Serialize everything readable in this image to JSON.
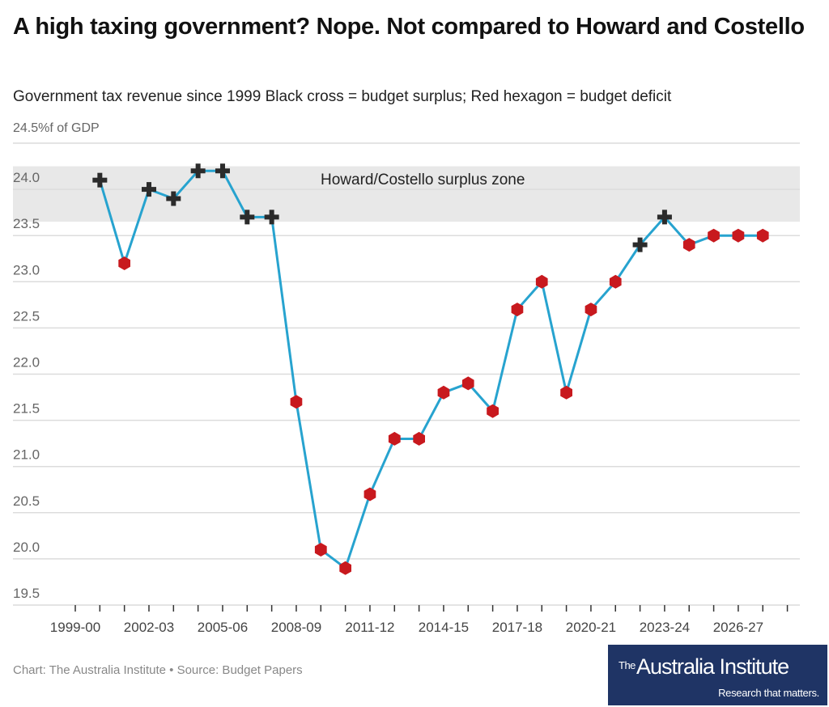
{
  "header": {
    "title": "A high taxing government? Nope. Not compared to Howard and Costello",
    "subtitle": "Government tax revenue since 1999 Black cross = budget surplus; Red hexagon = budget deficit",
    "unit_label": "24.5%f of GDP"
  },
  "footer": {
    "source": "Chart: The Australia Institute • Source: Budget Papers",
    "logo": {
      "the": "The",
      "name": "Australia Institute",
      "tagline": "Research that matters."
    }
  },
  "colors": {
    "line": "#27a3cf",
    "deficit": "#c8191e",
    "surplus": "#2b2b2b",
    "band": "#e8e8e8",
    "grid": "#dcdcdc",
    "logo_bg": "#1f3465"
  },
  "chart_data": {
    "type": "line",
    "title": "A high taxing government? Nope. Not compared to Howard and Costello",
    "subtitle": "Government tax revenue since 1999 Black cross = budget surplus; Red hexagon = budget deficit",
    "xlabel": "",
    "ylabel": "% of GDP",
    "ylim": [
      19.5,
      24.5
    ],
    "yticks": [
      "19.5",
      "20.0",
      "20.5",
      "21.0",
      "21.5",
      "22.0",
      "22.5",
      "23.0",
      "23.5",
      "24.0"
    ],
    "xtick_labels": [
      "1999-00",
      "2002-03",
      "2005-06",
      "2008-09",
      "2011-12",
      "2014-15",
      "2017-18",
      "2020-21",
      "2023-24",
      "2026-27"
    ],
    "axis_categories": [
      "1999-00",
      "2000-01",
      "2001-02",
      "2002-03",
      "2003-04",
      "2004-05",
      "2005-06",
      "2006-07",
      "2007-08",
      "2008-09",
      "2009-10",
      "2010-11",
      "2011-12",
      "2012-13",
      "2013-14",
      "2014-15",
      "2015-16",
      "2016-17",
      "2017-18",
      "2018-19",
      "2019-20",
      "2020-21",
      "2021-22",
      "2022-23",
      "2023-24",
      "2024-25",
      "2025-26",
      "2026-27",
      "2027-28",
      "2028-29"
    ],
    "grid": true,
    "legend": "none (encoded in subtitle)",
    "band": {
      "label": "Howard/Costello surplus zone",
      "from": 23.65,
      "to": 24.25
    },
    "series": [
      {
        "name": "Tax revenue (% of GDP)",
        "points": [
          {
            "x": "2000-01",
            "y": 24.1,
            "status": "surplus"
          },
          {
            "x": "2001-02",
            "y": 23.2,
            "status": "deficit"
          },
          {
            "x": "2002-03",
            "y": 24.0,
            "status": "surplus"
          },
          {
            "x": "2003-04",
            "y": 23.9,
            "status": "surplus"
          },
          {
            "x": "2004-05",
            "y": 24.2,
            "status": "surplus"
          },
          {
            "x": "2005-06",
            "y": 24.2,
            "status": "surplus"
          },
          {
            "x": "2006-07",
            "y": 23.7,
            "status": "surplus"
          },
          {
            "x": "2007-08",
            "y": 23.7,
            "status": "surplus"
          },
          {
            "x": "2008-09",
            "y": 21.7,
            "status": "deficit"
          },
          {
            "x": "2009-10",
            "y": 20.1,
            "status": "deficit"
          },
          {
            "x": "2010-11",
            "y": 19.9,
            "status": "deficit"
          },
          {
            "x": "2011-12",
            "y": 20.7,
            "status": "deficit"
          },
          {
            "x": "2012-13",
            "y": 21.3,
            "status": "deficit"
          },
          {
            "x": "2013-14",
            "y": 21.3,
            "status": "deficit"
          },
          {
            "x": "2014-15",
            "y": 21.8,
            "status": "deficit"
          },
          {
            "x": "2015-16",
            "y": 21.9,
            "status": "deficit"
          },
          {
            "x": "2016-17",
            "y": 21.6,
            "status": "deficit"
          },
          {
            "x": "2017-18",
            "y": 22.7,
            "status": "deficit"
          },
          {
            "x": "2018-19",
            "y": 23.0,
            "status": "deficit"
          },
          {
            "x": "2019-20",
            "y": 21.8,
            "status": "deficit"
          },
          {
            "x": "2020-21",
            "y": 22.7,
            "status": "deficit"
          },
          {
            "x": "2021-22",
            "y": 23.0,
            "status": "deficit"
          },
          {
            "x": "2022-23",
            "y": 23.4,
            "status": "surplus"
          },
          {
            "x": "2023-24",
            "y": 23.7,
            "status": "surplus"
          },
          {
            "x": "2024-25",
            "y": 23.4,
            "status": "deficit"
          },
          {
            "x": "2025-26",
            "y": 23.5,
            "status": "deficit"
          },
          {
            "x": "2026-27",
            "y": 23.5,
            "status": "deficit"
          },
          {
            "x": "2027-28",
            "y": 23.5,
            "status": "deficit"
          }
        ]
      }
    ]
  }
}
